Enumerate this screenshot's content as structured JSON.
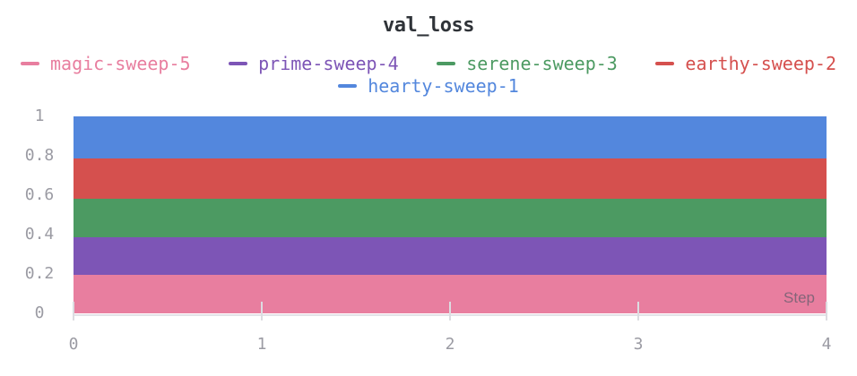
{
  "title": "val_loss",
  "chart_data": {
    "type": "area",
    "stacked": true,
    "title": "val_loss",
    "xlabel": "Step",
    "ylabel": "",
    "xlim": [
      0,
      4
    ],
    "ylim": [
      0,
      1
    ],
    "x": [
      0,
      1,
      2,
      3,
      4
    ],
    "xticks": [
      "0",
      "1",
      "2",
      "3",
      "4"
    ],
    "yticks": [
      "1",
      "0.8",
      "0.6",
      "0.4",
      "0.2",
      "0"
    ],
    "grid": false,
    "legend_position": "top",
    "series": [
      {
        "name": "magic-sweep-5",
        "color": "#E87E9F",
        "stack_from": 0,
        "stack_to": 0.195,
        "values": [
          0.195,
          0.195,
          0.195,
          0.195,
          0.195
        ]
      },
      {
        "name": "prime-sweep-4",
        "color": "#7D55B6",
        "stack_from": 0.195,
        "stack_to": 0.385,
        "values": [
          0.19,
          0.19,
          0.19,
          0.19,
          0.19
        ]
      },
      {
        "name": "serene-sweep-3",
        "color": "#4C9A62",
        "stack_from": 0.385,
        "stack_to": 0.583,
        "values": [
          0.198,
          0.198,
          0.198,
          0.198,
          0.198
        ]
      },
      {
        "name": "earthy-sweep-2",
        "color": "#D5504E",
        "stack_from": 0.583,
        "stack_to": 0.785,
        "values": [
          0.202,
          0.202,
          0.202,
          0.202,
          0.202
        ]
      },
      {
        "name": "hearty-sweep-1",
        "color": "#5387DD",
        "stack_from": 0.785,
        "stack_to": 1.0,
        "values": [
          0.215,
          0.215,
          0.215,
          0.215,
          0.215
        ]
      }
    ]
  },
  "colors": {
    "title_text": "#2F3338",
    "axis_label_text": "#9B9BA3",
    "tick_mark": "#DCDCE1",
    "axis_line": "#E2E2E7",
    "step_label_text": "#5E5C6B",
    "background": "#FFFFFF"
  }
}
